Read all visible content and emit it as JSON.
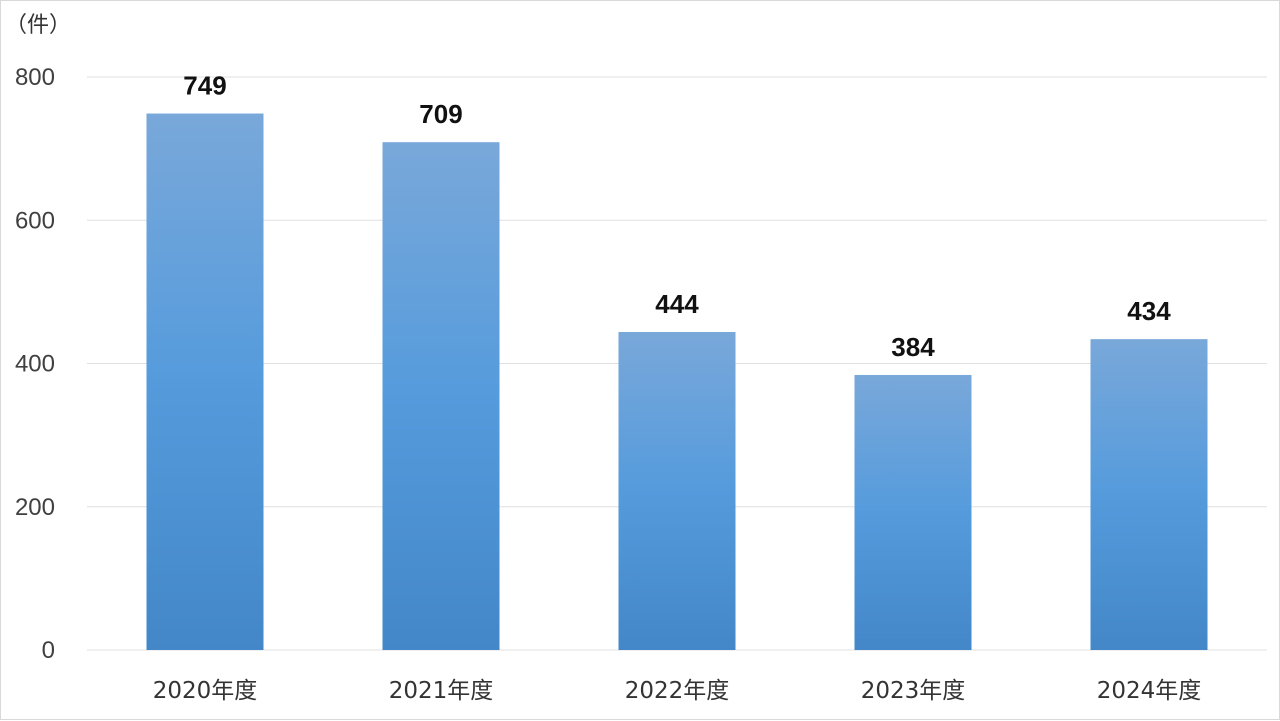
{
  "chart_data": {
    "type": "bar",
    "unit_label": "（件）",
    "categories": [
      "2020年度",
      "2021年度",
      "2022年度",
      "2023年度",
      "2024年度"
    ],
    "values": [
      749,
      709,
      444,
      384,
      434
    ],
    "data_labels": [
      "749",
      "709",
      "444",
      "384",
      "434"
    ],
    "y_ticks": [
      0,
      200,
      400,
      600,
      800
    ],
    "ylim": [
      0,
      800
    ],
    "grid": true,
    "legend": "none",
    "bar_color_top": "#79a8da",
    "bar_color_mid": "#559bdc",
    "bar_color_bottom": "#4387c8",
    "gridline_color": "#e0e0e0"
  }
}
